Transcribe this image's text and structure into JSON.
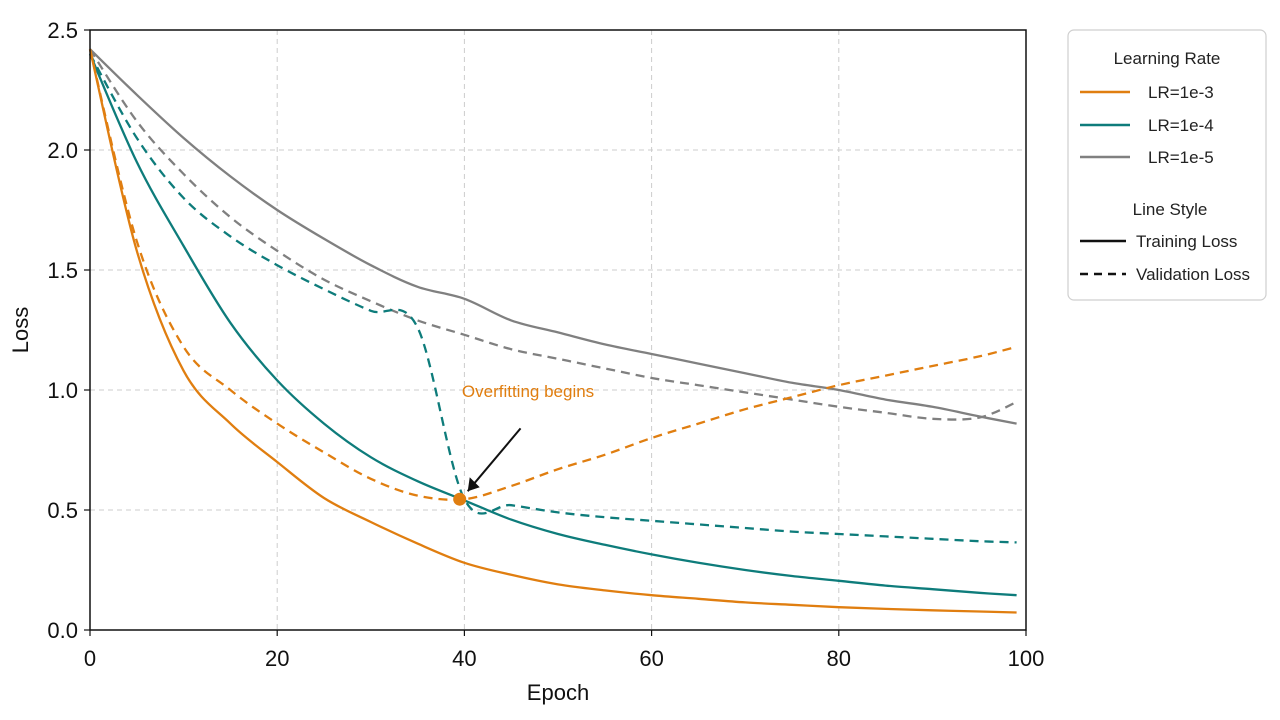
{
  "chart_data": {
    "type": "line",
    "xlabel": "Epoch",
    "ylabel": "Loss",
    "xlim": [
      0,
      100
    ],
    "ylim": [
      0.0,
      2.5
    ],
    "xticks": [
      0,
      20,
      40,
      60,
      80,
      100
    ],
    "yticks": [
      0.0,
      0.5,
      1.0,
      1.5,
      2.0,
      2.5
    ],
    "xtick_labels": [
      "0",
      "20",
      "40",
      "60",
      "80",
      "100"
    ],
    "ytick_labels": [
      "0.0",
      "0.5",
      "1.0",
      "1.5",
      "2.0",
      "2.5"
    ],
    "grid": true,
    "legend_placement": "outside-top-right",
    "legend_groups": [
      {
        "title": "Learning Rate",
        "entries": [
          "LR=1e-3",
          "LR=1e-4",
          "LR=1e-5"
        ]
      },
      {
        "title": "Line Style",
        "entries": [
          "Training Loss",
          "Validation Loss"
        ]
      }
    ],
    "annotation": {
      "text": "Overfitting begins",
      "x": 39.5,
      "y": 0.545,
      "color": "#e07e10"
    },
    "series": [
      {
        "name": "LR=1e-3",
        "style": "solid",
        "color": "#e07e10",
        "x": [
          0,
          5,
          10,
          15,
          20,
          25,
          30,
          35,
          40,
          45,
          50,
          55,
          60,
          65,
          70,
          75,
          80,
          85,
          90,
          95,
          99
        ],
        "y": [
          2.42,
          1.58,
          1.08,
          0.86,
          0.7,
          0.55,
          0.45,
          0.36,
          0.28,
          0.23,
          0.19,
          0.165,
          0.145,
          0.13,
          0.115,
          0.105,
          0.095,
          0.088,
          0.082,
          0.077,
          0.073
        ]
      },
      {
        "name": "LR=1e-3",
        "style": "dashed",
        "color": "#e07e10",
        "x": [
          0,
          5,
          10,
          15,
          20,
          25,
          30,
          35,
          40,
          45,
          50,
          55,
          60,
          65,
          70,
          75,
          80,
          85,
          90,
          95,
          99
        ],
        "y": [
          2.42,
          1.62,
          1.18,
          1.0,
          0.86,
          0.74,
          0.63,
          0.56,
          0.545,
          0.6,
          0.67,
          0.73,
          0.8,
          0.86,
          0.92,
          0.97,
          1.02,
          1.06,
          1.1,
          1.14,
          1.18
        ]
      },
      {
        "name": "LR=1e-4",
        "style": "solid",
        "color": "#0e7c7b",
        "x": [
          0,
          5,
          10,
          15,
          20,
          25,
          30,
          35,
          40,
          45,
          50,
          55,
          60,
          65,
          70,
          75,
          80,
          85,
          90,
          95,
          99
        ],
        "y": [
          2.4,
          1.95,
          1.6,
          1.28,
          1.04,
          0.86,
          0.72,
          0.62,
          0.54,
          0.46,
          0.4,
          0.355,
          0.315,
          0.28,
          0.25,
          0.225,
          0.205,
          0.185,
          0.17,
          0.155,
          0.145
        ]
      },
      {
        "name": "LR=1e-4",
        "style": "dashed",
        "color": "#0e7c7b",
        "x": [
          0,
          5,
          10,
          15,
          20,
          25,
          30,
          35,
          40,
          45,
          50,
          55,
          60,
          65,
          70,
          75,
          80,
          85,
          90,
          95,
          99
        ],
        "y": [
          2.4,
          2.05,
          1.8,
          1.64,
          1.52,
          1.42,
          1.33,
          1.26,
          0.545,
          0.52,
          0.49,
          0.47,
          0.455,
          0.44,
          0.425,
          0.41,
          0.4,
          0.39,
          0.38,
          0.37,
          0.365
        ]
      },
      {
        "name": "LR=1e-5",
        "style": "solid",
        "color": "#808080",
        "x": [
          0,
          5,
          10,
          15,
          20,
          25,
          30,
          35,
          40,
          45,
          50,
          55,
          60,
          65,
          70,
          75,
          80,
          85,
          90,
          95,
          99
        ],
        "y": [
          2.42,
          2.23,
          2.05,
          1.89,
          1.75,
          1.63,
          1.52,
          1.43,
          1.38,
          1.29,
          1.24,
          1.19,
          1.15,
          1.11,
          1.07,
          1.03,
          1.0,
          0.96,
          0.93,
          0.89,
          0.86
        ]
      },
      {
        "name": "LR=1e-5",
        "style": "dashed",
        "color": "#808080",
        "x": [
          0,
          5,
          10,
          15,
          20,
          25,
          30,
          35,
          40,
          45,
          50,
          55,
          60,
          65,
          70,
          75,
          80,
          85,
          90,
          95,
          99
        ],
        "y": [
          2.42,
          2.12,
          1.9,
          1.72,
          1.58,
          1.46,
          1.37,
          1.29,
          1.23,
          1.17,
          1.13,
          1.09,
          1.05,
          1.02,
          0.99,
          0.96,
          0.93,
          0.905,
          0.88,
          0.885,
          0.95
        ]
      }
    ]
  },
  "legend": {
    "group1_title": "Learning Rate",
    "lr1": "LR=1e-3",
    "lr2": "LR=1e-4",
    "lr3": "LR=1e-5",
    "group2_title": "Line Style",
    "train": "Training Loss",
    "val": "Validation Loss"
  },
  "colors": {
    "lr1": "#e07e10",
    "lr2": "#0e7c7b",
    "lr3": "#808080",
    "grid": "#cccccc",
    "axis": "#111111"
  }
}
